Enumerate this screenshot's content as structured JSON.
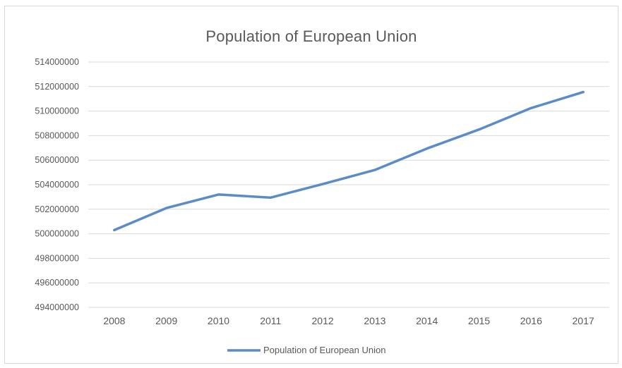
{
  "chart_data": {
    "type": "line",
    "title": "Population of European Union",
    "xlabel": "",
    "ylabel": "",
    "x": [
      "2008",
      "2009",
      "2010",
      "2011",
      "2012",
      "2013",
      "2014",
      "2015",
      "2016",
      "2017"
    ],
    "series": [
      {
        "name": "Population of European Union",
        "color": "#5b8cc8",
        "values": [
          500300000,
          502100000,
          503200000,
          502950000,
          504050000,
          505200000,
          506950000,
          508500000,
          510250000,
          511550000
        ]
      }
    ],
    "ylim": [
      494000000,
      514000000
    ],
    "yticks": [
      "494000000",
      "496000000",
      "498000000",
      "500000000",
      "502000000",
      "504000000",
      "506000000",
      "508000000",
      "510000000",
      "512000000",
      "514000000"
    ],
    "grid": "horizontal",
    "legend": "bottom"
  }
}
